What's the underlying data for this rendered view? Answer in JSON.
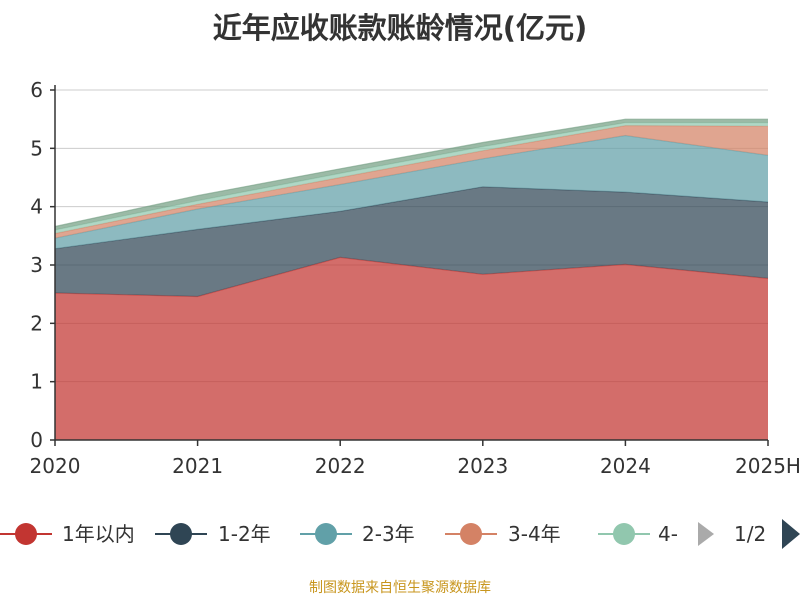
{
  "chart_data": {
    "type": "area",
    "stacked": true,
    "title": "近年应收账款账龄情况(亿元)",
    "ylabel": "",
    "xlabel": "",
    "categories": [
      "2020",
      "2021",
      "2022",
      "2023",
      "2024",
      "2025H"
    ],
    "ylim": [
      0,
      6
    ],
    "yticks": [
      "0",
      "1",
      "2",
      "3",
      "4",
      "5",
      "6"
    ],
    "grid": true,
    "series": [
      {
        "name": "1年以内",
        "color": "#c23531",
        "values": [
          2.52,
          2.46,
          3.13,
          2.84,
          3.01,
          2.77
        ]
      },
      {
        "name": "1-2年",
        "color": "#2f4554",
        "values": [
          0.76,
          1.15,
          0.79,
          1.5,
          1.24,
          1.31
        ]
      },
      {
        "name": "2-3年",
        "color": "#61a0a8",
        "values": [
          0.18,
          0.35,
          0.46,
          0.48,
          0.97,
          0.8
        ]
      },
      {
        "name": "3-4年",
        "color": "#d48265",
        "values": [
          0.08,
          0.08,
          0.12,
          0.14,
          0.17,
          0.5
        ]
      },
      {
        "name": "4-",
        "color": "#91c7ae",
        "values": [
          0.06,
          0.06,
          0.07,
          0.07,
          0.05,
          0.06
        ]
      },
      {
        "color": "#749f83",
        "values": [
          0.06,
          0.09,
          0.08,
          0.07,
          0.06,
          0.06
        ]
      }
    ],
    "legend": {
      "position": "bottom",
      "page": "1/2"
    },
    "source": "制图数据来自恒生聚源数据库"
  }
}
